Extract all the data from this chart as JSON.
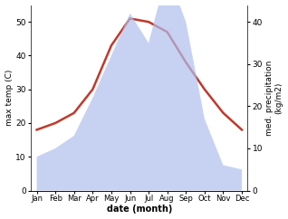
{
  "months": [
    "Jan",
    "Feb",
    "Mar",
    "Apr",
    "May",
    "Jun",
    "Jul",
    "Aug",
    "Sep",
    "Oct",
    "Nov",
    "Dec"
  ],
  "temperature": [
    18,
    20,
    23,
    30,
    43,
    51,
    50,
    47,
    38,
    30,
    23,
    18
  ],
  "precipitation": [
    8,
    10,
    13,
    22,
    32,
    42,
    35,
    52,
    40,
    17,
    6,
    5
  ],
  "temp_color": "#c0392b",
  "precip_color": "#b0bfee",
  "ylabel_left": "max temp (C)",
  "ylabel_right": "med. precipitation\n(kg/m2)",
  "xlabel": "date (month)",
  "ylim_left": [
    0,
    55
  ],
  "ylim_right": [
    0,
    44
  ],
  "yticks_left": [
    0,
    10,
    20,
    30,
    40,
    50
  ],
  "yticks_right": [
    0,
    10,
    20,
    30,
    40
  ],
  "bg_color": "#ffffff",
  "line_width": 1.8
}
